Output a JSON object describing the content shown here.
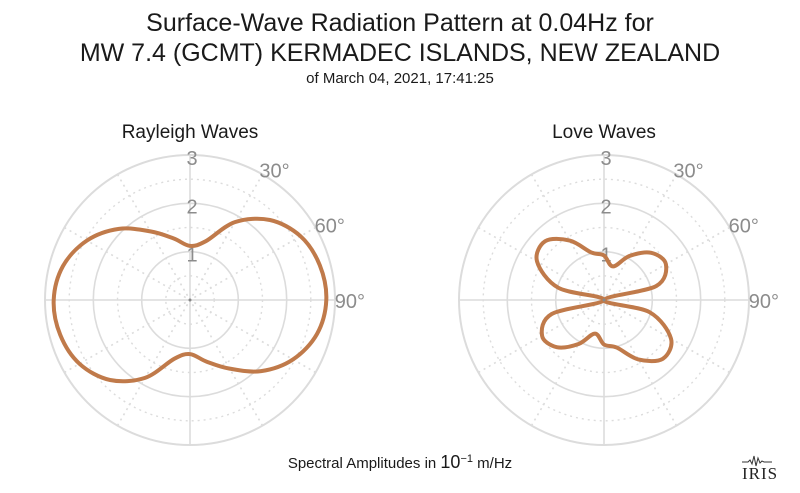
{
  "title": {
    "line1": "Surface-Wave Radiation Pattern at 0.04Hz for",
    "line2": "MW 7.4 (GCMT) KERMADEC ISLANDS, NEW ZEALAND",
    "subtitle": "of March 04, 2021, 17:41:25"
  },
  "footer": {
    "prefix": "Spectral Amplitudes in ",
    "base": "10",
    "exponent": "−1",
    "unit": " m/Hz"
  },
  "logo": {
    "text": "IRIS"
  },
  "colors": {
    "curve": "#c07a4a",
    "grid": "#dcdcdc",
    "label": "#8c8c8c"
  },
  "chart_data": [
    {
      "type": "polar-line",
      "title": "Rayleigh Waves",
      "radial_ticks": [
        "1",
        "2",
        "3"
      ],
      "radial_range": [
        0,
        3
      ],
      "angle_ticks": [
        "30°",
        "60°",
        "90°"
      ],
      "theta_deg": [
        0,
        15,
        30,
        45,
        60,
        75,
        90,
        105,
        120,
        135,
        150,
        165,
        180,
        195,
        210,
        225,
        240,
        255,
        270,
        285,
        300,
        315,
        330,
        345
      ],
      "r": [
        1.12,
        1.26,
        1.86,
        2.34,
        2.64,
        2.78,
        2.82,
        2.72,
        2.46,
        2.08,
        1.64,
        1.32,
        1.12,
        1.26,
        1.86,
        2.34,
        2.64,
        2.78,
        2.82,
        2.72,
        2.46,
        2.08,
        1.64,
        1.32
      ]
    },
    {
      "type": "polar-line",
      "title": "Love Waves",
      "radial_ticks": [
        "1",
        "2",
        "3"
      ],
      "radial_range": [
        0,
        3
      ],
      "angle_ticks": [
        "30°",
        "60°",
        "90°"
      ],
      "theta_deg": [
        0,
        15,
        30,
        45,
        60,
        75,
        90,
        105,
        120,
        135,
        150,
        165,
        180,
        195,
        210,
        225,
        240,
        255,
        270,
        285,
        300,
        315,
        330,
        345
      ],
      "r": [
        0.92,
        0.72,
        1.05,
        1.38,
        1.48,
        1.12,
        0.0,
        0.98,
        1.6,
        1.72,
        1.42,
        1.02,
        0.92,
        0.72,
        1.05,
        1.38,
        1.48,
        1.12,
        0.0,
        0.98,
        1.6,
        1.72,
        1.42,
        1.02
      ]
    }
  ]
}
